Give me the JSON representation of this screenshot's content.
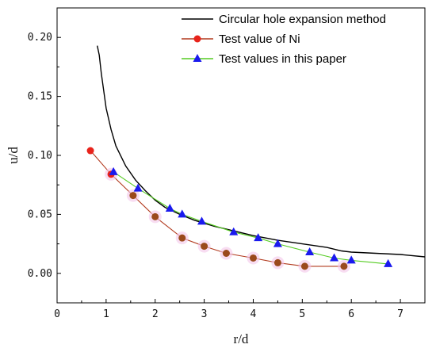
{
  "chart_data": {
    "type": "line",
    "xlabel": "r/d",
    "ylabel": "u/d",
    "xlim": [
      0,
      7.5
    ],
    "ylim": [
      -0.025,
      0.225
    ],
    "x_ticks": [
      0,
      1,
      2,
      3,
      4,
      5,
      6,
      7
    ],
    "x_tick_labels": [
      "0",
      "1",
      "2",
      "3",
      "4",
      "5",
      "6",
      "7"
    ],
    "y_ticks": [
      0.0,
      0.05,
      0.1,
      0.15,
      0.2
    ],
    "y_tick_labels": [
      "0.00",
      "0.05",
      "0.10",
      "0.15",
      "0.20"
    ],
    "grid": false,
    "legend_position": "top-right",
    "series": [
      {
        "name": "Circular hole expansion method",
        "color": "#000000",
        "marker": "none",
        "x": [
          0.82,
          0.86,
          0.9,
          0.95,
          1.0,
          1.1,
          1.2,
          1.4,
          1.6,
          1.8,
          2.0,
          2.2,
          2.5,
          2.8,
          3.2,
          3.6,
          4.0,
          4.5,
          5.0,
          5.5,
          5.8,
          6.0,
          6.5,
          7.0,
          7.5
        ],
        "y": [
          0.193,
          0.185,
          0.17,
          0.155,
          0.14,
          0.122,
          0.108,
          0.091,
          0.079,
          0.07,
          0.062,
          0.056,
          0.05,
          0.045,
          0.04,
          0.036,
          0.032,
          0.028,
          0.025,
          0.022,
          0.019,
          0.018,
          0.017,
          0.016,
          0.014
        ]
      },
      {
        "name": "Test value of Ni",
        "color": "#b23a1e",
        "marker": "circle",
        "x": [
          0.68,
          1.1,
          1.55,
          2.0,
          2.55,
          3.0,
          3.45,
          4.0,
          4.5,
          5.05,
          5.85
        ],
        "y": [
          0.104,
          0.084,
          0.066,
          0.048,
          0.03,
          0.023,
          0.017,
          0.013,
          0.009,
          0.006,
          0.006
        ]
      },
      {
        "name": "Test values in this paper",
        "color": "#33cc00",
        "marker": "triangle",
        "x": [
          1.15,
          1.65,
          2.3,
          2.55,
          2.95,
          3.6,
          4.1,
          4.5,
          5.15,
          5.65,
          6.0,
          6.75
        ],
        "y": [
          0.086,
          0.072,
          0.055,
          0.05,
          0.044,
          0.035,
          0.03,
          0.025,
          0.018,
          0.013,
          0.011,
          0.008
        ]
      }
    ]
  }
}
